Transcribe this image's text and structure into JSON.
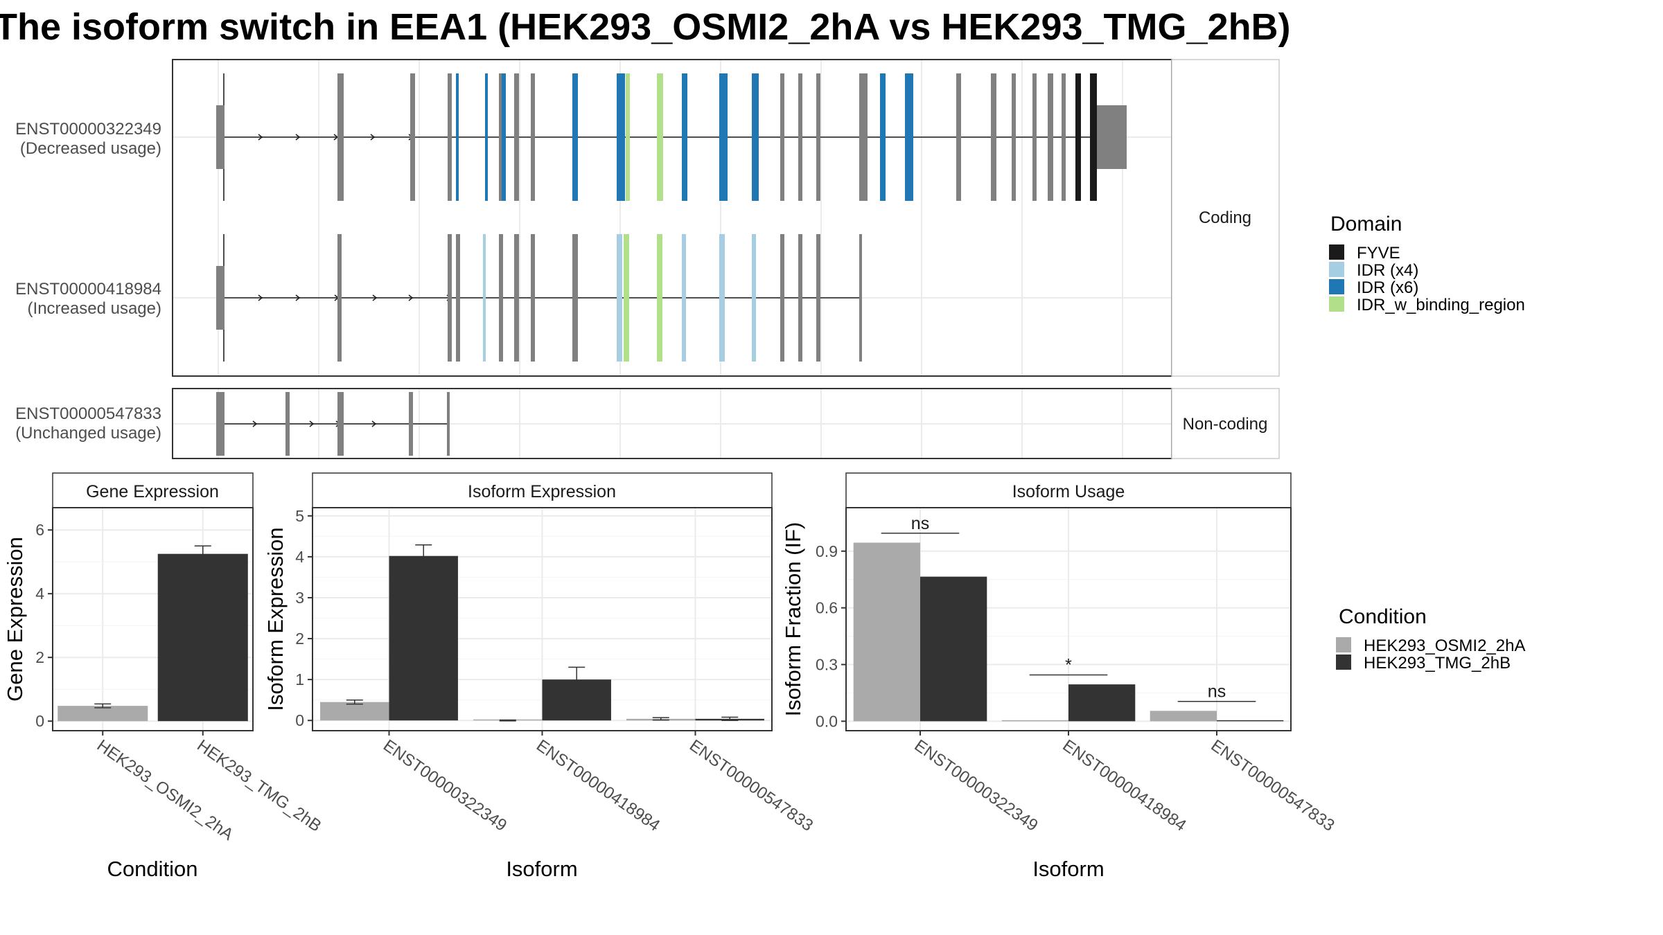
{
  "title": "The isoform switch in EEA1 (HEK293_OSMI2_2hA vs HEK293_TMG_2hB)",
  "colors": {
    "FYVE": "#1a1a1a",
    "IDR (x4)": "#a6cee3",
    "IDR (x6)": "#1f78b4",
    "IDR_w_binding_region": "#b2df8a",
    "exon": "#808080",
    "cond_a": "#aaaaaa",
    "cond_b": "#333333"
  },
  "chart_data": [
    {
      "type": "gene-structure",
      "facets": [
        "Coding",
        "Non-coding"
      ],
      "transcripts": [
        {
          "id": "ENST00000322349",
          "usage": "(Decreased usage)",
          "facet": "Coding"
        },
        {
          "id": "ENST00000418984",
          "usage": "(Increased usage)",
          "facet": "Coding"
        },
        {
          "id": "ENST00000547833",
          "usage": "(Unchanged usage)",
          "facet": "Non-coding"
        }
      ],
      "legend": {
        "title": "Domain",
        "entries": [
          "FYVE",
          "IDR (x4)",
          "IDR (x6)",
          "IDR_w_binding_region"
        ],
        "placement": "right"
      }
    },
    {
      "type": "bar",
      "panel": "Gene Expression",
      "xlabel": "Condition",
      "ylabel": "Gene Expression",
      "categories": [
        "HEK293_OSMI2_2hA",
        "HEK293_TMG_2hB"
      ],
      "values": [
        0.48,
        5.25
      ],
      "errors": [
        0.06,
        0.25
      ],
      "yticks": [
        0,
        2,
        4,
        6
      ],
      "ylim": [
        -0.3,
        6.7
      ]
    },
    {
      "type": "bar",
      "panel": "Isoform Expression",
      "xlabel": "Isoform",
      "ylabel": "Isoform Expression",
      "categories": [
        "ENST00000322349",
        "ENST00000418984",
        "ENST00000547833"
      ],
      "series": [
        {
          "name": "HEK293_OSMI2_2hA",
          "values": [
            0.45,
            0.0,
            0.04
          ],
          "errors": [
            0.05,
            0.01,
            0.03
          ]
        },
        {
          "name": "HEK293_TMG_2hB",
          "values": [
            4.02,
            1.0,
            0.04
          ],
          "errors": [
            0.27,
            0.3,
            0.04
          ]
        }
      ],
      "yticks": [
        0,
        1,
        2,
        3,
        4,
        5
      ],
      "ylim": [
        -0.25,
        5.2
      ]
    },
    {
      "type": "bar",
      "panel": "Isoform Usage",
      "xlabel": "Isoform",
      "ylabel": "Isoform Fraction (IF)",
      "categories": [
        "ENST00000322349",
        "ENST00000418984",
        "ENST00000547833"
      ],
      "series": [
        {
          "name": "HEK293_OSMI2_2hA",
          "values": [
            0.945,
            0.0,
            0.055
          ]
        },
        {
          "name": "HEK293_TMG_2hB",
          "values": [
            0.765,
            0.195,
            0.005
          ]
        }
      ],
      "significance": [
        "ns",
        "*",
        "ns"
      ],
      "yticks": [
        0.0,
        0.3,
        0.6,
        0.9
      ],
      "ytick_labels": [
        "0.0",
        "0.3",
        "0.6",
        "0.9"
      ],
      "ylim": [
        -0.05,
        1.13
      ],
      "legend": {
        "title": "Condition",
        "entries": [
          "HEK293_OSMI2_2hA",
          "HEK293_TMG_2hB"
        ],
        "placement": "right"
      }
    }
  ]
}
